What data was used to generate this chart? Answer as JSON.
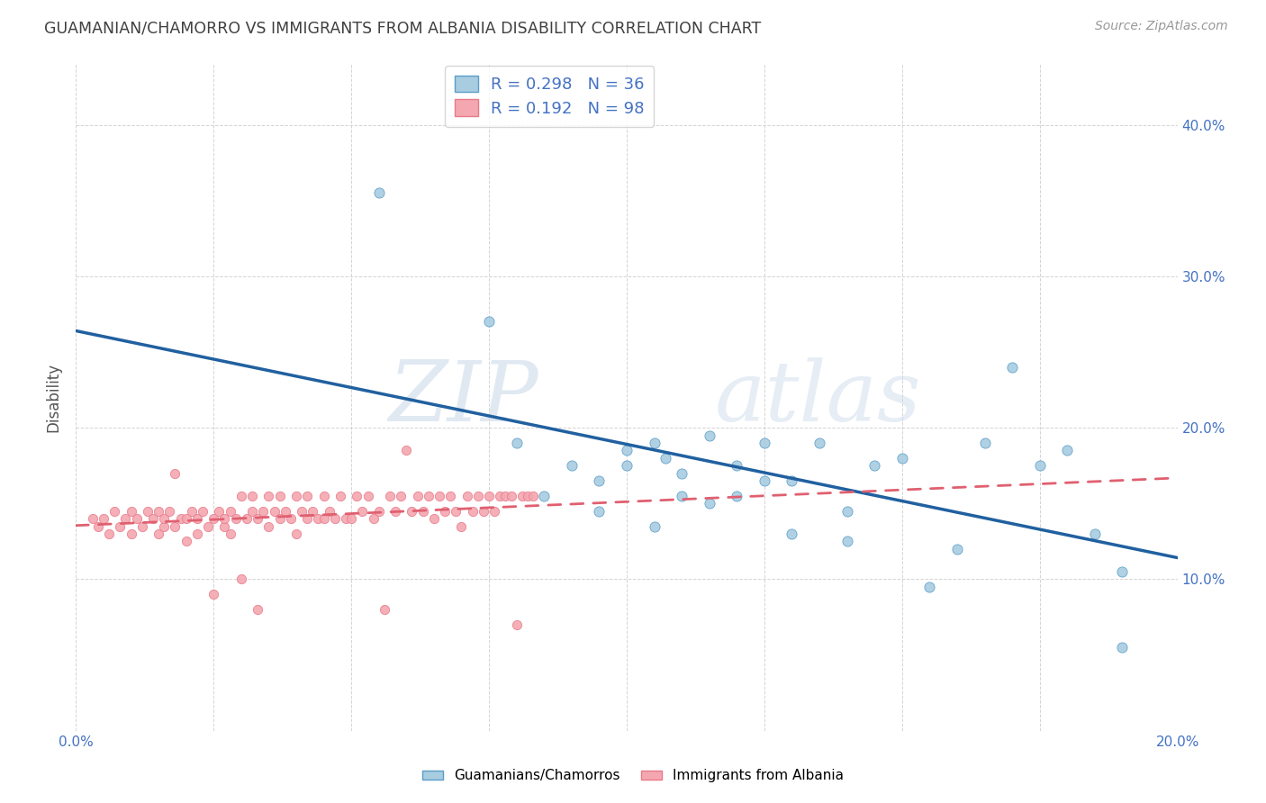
{
  "title": "GUAMANIAN/CHAMORRO VS IMMIGRANTS FROM ALBANIA DISABILITY CORRELATION CHART",
  "source": "Source: ZipAtlas.com",
  "ylabel": "Disability",
  "xlim": [
    0.0,
    0.2
  ],
  "ylim": [
    0.0,
    0.44
  ],
  "xtick_positions": [
    0.0,
    0.025,
    0.05,
    0.075,
    0.1,
    0.125,
    0.15,
    0.175,
    0.2
  ],
  "xticklabels": [
    "0.0%",
    "",
    "",
    "",
    "",
    "",
    "",
    "",
    "20.0%"
  ],
  "ytick_positions": [
    0.0,
    0.1,
    0.2,
    0.3,
    0.4
  ],
  "yticklabels": [
    "",
    "10.0%",
    "20.0%",
    "30.0%",
    "40.0%"
  ],
  "blue_color": "#a8cce0",
  "blue_edge": "#5b9ec9",
  "pink_color": "#f4a7b0",
  "pink_edge": "#e87a8a",
  "blue_line_color": "#2060a0",
  "pink_line_color": "#e06070",
  "R_blue": 0.298,
  "N_blue": 36,
  "R_pink": 0.192,
  "N_pink": 98,
  "watermark": "ZIPatlas",
  "blue_x": [
    0.055,
    0.075,
    0.08,
    0.085,
    0.09,
    0.095,
    0.095,
    0.1,
    0.1,
    0.105,
    0.105,
    0.107,
    0.11,
    0.11,
    0.115,
    0.115,
    0.12,
    0.12,
    0.125,
    0.125,
    0.13,
    0.13,
    0.135,
    0.14,
    0.14,
    0.145,
    0.15,
    0.155,
    0.16,
    0.165,
    0.17,
    0.175,
    0.18,
    0.185,
    0.19,
    0.19
  ],
  "blue_y": [
    0.355,
    0.27,
    0.19,
    0.155,
    0.175,
    0.145,
    0.165,
    0.175,
    0.185,
    0.135,
    0.19,
    0.18,
    0.155,
    0.17,
    0.15,
    0.195,
    0.175,
    0.155,
    0.19,
    0.165,
    0.165,
    0.13,
    0.19,
    0.125,
    0.145,
    0.175,
    0.18,
    0.095,
    0.12,
    0.19,
    0.24,
    0.175,
    0.185,
    0.13,
    0.105,
    0.055
  ],
  "pink_x": [
    0.003,
    0.004,
    0.005,
    0.006,
    0.007,
    0.008,
    0.009,
    0.01,
    0.01,
    0.011,
    0.012,
    0.013,
    0.014,
    0.015,
    0.015,
    0.016,
    0.016,
    0.017,
    0.018,
    0.018,
    0.019,
    0.02,
    0.02,
    0.021,
    0.022,
    0.022,
    0.023,
    0.024,
    0.025,
    0.025,
    0.026,
    0.027,
    0.027,
    0.028,
    0.028,
    0.029,
    0.03,
    0.03,
    0.031,
    0.032,
    0.032,
    0.033,
    0.033,
    0.034,
    0.035,
    0.035,
    0.036,
    0.037,
    0.037,
    0.038,
    0.039,
    0.04,
    0.04,
    0.041,
    0.042,
    0.042,
    0.043,
    0.044,
    0.045,
    0.045,
    0.046,
    0.047,
    0.048,
    0.049,
    0.05,
    0.051,
    0.052,
    0.053,
    0.054,
    0.055,
    0.056,
    0.057,
    0.058,
    0.059,
    0.06,
    0.061,
    0.062,
    0.063,
    0.064,
    0.065,
    0.066,
    0.067,
    0.068,
    0.069,
    0.07,
    0.071,
    0.072,
    0.073,
    0.074,
    0.075,
    0.076,
    0.077,
    0.078,
    0.079,
    0.08,
    0.081,
    0.082,
    0.083
  ],
  "pink_y": [
    0.14,
    0.135,
    0.14,
    0.13,
    0.145,
    0.135,
    0.14,
    0.13,
    0.145,
    0.14,
    0.135,
    0.145,
    0.14,
    0.13,
    0.145,
    0.135,
    0.14,
    0.145,
    0.135,
    0.17,
    0.14,
    0.125,
    0.14,
    0.145,
    0.13,
    0.14,
    0.145,
    0.135,
    0.09,
    0.14,
    0.145,
    0.135,
    0.14,
    0.13,
    0.145,
    0.14,
    0.1,
    0.155,
    0.14,
    0.145,
    0.155,
    0.14,
    0.08,
    0.145,
    0.135,
    0.155,
    0.145,
    0.14,
    0.155,
    0.145,
    0.14,
    0.13,
    0.155,
    0.145,
    0.14,
    0.155,
    0.145,
    0.14,
    0.14,
    0.155,
    0.145,
    0.14,
    0.155,
    0.14,
    0.14,
    0.155,
    0.145,
    0.155,
    0.14,
    0.145,
    0.08,
    0.155,
    0.145,
    0.155,
    0.185,
    0.145,
    0.155,
    0.145,
    0.155,
    0.14,
    0.155,
    0.145,
    0.155,
    0.145,
    0.135,
    0.155,
    0.145,
    0.155,
    0.145,
    0.155,
    0.145,
    0.155,
    0.155,
    0.155,
    0.07,
    0.155,
    0.155,
    0.155
  ],
  "grid_color": "#d0d0d0",
  "bg_color": "#ffffff",
  "tick_color": "#4472c4",
  "title_color": "#404040",
  "legend_label_color": "#4472c4"
}
